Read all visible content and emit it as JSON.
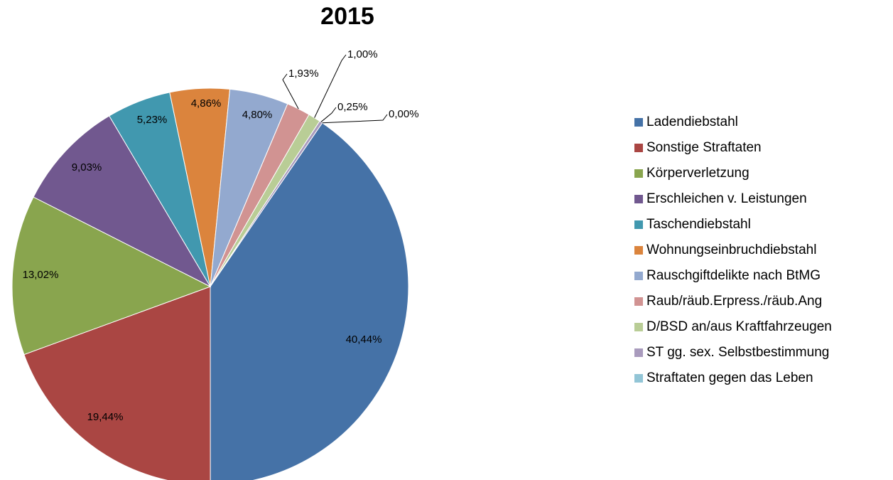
{
  "chart_data": {
    "type": "pie",
    "title": "2015",
    "categories": [
      "Ladendiebstahl",
      "Sonstige Straftaten",
      "Körperverletzung",
      "Erschleichen v. Leistungen",
      "Taschendiebstahl",
      "Wohnungseinbruchdiebstahl",
      "Rauschgiftdelikte nach BtMG",
      "Raub/räub.Erpress./räub.Ang",
      "D/BSD an/aus Kraftfahrzeugen",
      "ST gg. sex. Selbstbestimmung",
      "Straftaten gegen das Leben"
    ],
    "values": [
      40.44,
      19.44,
      13.02,
      9.03,
      5.23,
      4.86,
      4.8,
      1.93,
      1.0,
      0.25,
      0.0
    ],
    "value_labels": [
      "40,44%",
      "19,44%",
      "13,02%",
      "9,03%",
      "5,23%",
      "4,86%",
      "4,80%",
      "1,93%",
      "1,00%",
      "0,25%",
      "0,00%"
    ],
    "colors": [
      "#4572a7",
      "#aa4643",
      "#89a54e",
      "#71588f",
      "#4198af",
      "#db843d",
      "#93a9cf",
      "#d19392",
      "#b9cd96",
      "#a99bbd",
      "#92c5d6"
    ],
    "legend": "right"
  }
}
